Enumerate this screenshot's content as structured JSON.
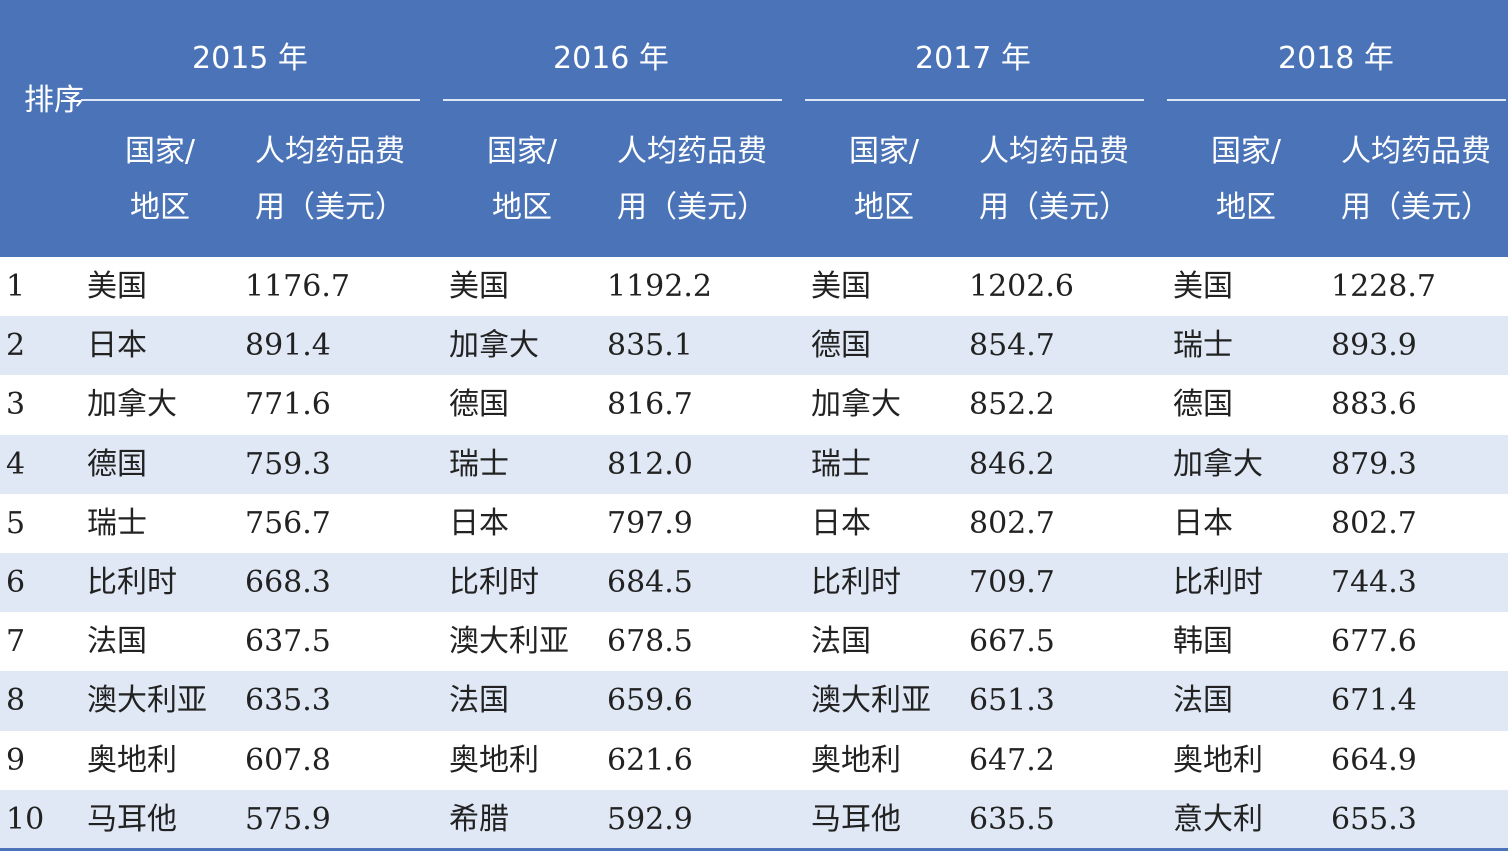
{
  "header": {
    "rank": "排序",
    "years": [
      "2015 年",
      "2016 年",
      "2017 年",
      "2018 年"
    ],
    "country_col": [
      "国家/",
      "地区"
    ],
    "value_col": [
      "人均药品费",
      "用（美元）"
    ]
  },
  "rows": [
    {
      "rank": "1",
      "y2015": {
        "country": "美国",
        "value": "1176.7"
      },
      "y2016": {
        "country": "美国",
        "value": "1192.2"
      },
      "y2017": {
        "country": "美国",
        "value": "1202.6"
      },
      "y2018": {
        "country": "美国",
        "value": "1228.7"
      }
    },
    {
      "rank": "2",
      "y2015": {
        "country": "日本",
        "value": "891.4"
      },
      "y2016": {
        "country": "加拿大",
        "value": "835.1"
      },
      "y2017": {
        "country": "德国",
        "value": "854.7"
      },
      "y2018": {
        "country": "瑞士",
        "value": "893.9"
      }
    },
    {
      "rank": "3",
      "y2015": {
        "country": "加拿大",
        "value": "771.6"
      },
      "y2016": {
        "country": "德国",
        "value": "816.7"
      },
      "y2017": {
        "country": "加拿大",
        "value": "852.2"
      },
      "y2018": {
        "country": "德国",
        "value": "883.6"
      }
    },
    {
      "rank": "4",
      "y2015": {
        "country": "德国",
        "value": "759.3"
      },
      "y2016": {
        "country": "瑞士",
        "value": "812.0"
      },
      "y2017": {
        "country": "瑞士",
        "value": "846.2"
      },
      "y2018": {
        "country": "加拿大",
        "value": "879.3"
      }
    },
    {
      "rank": "5",
      "y2015": {
        "country": "瑞士",
        "value": "756.7"
      },
      "y2016": {
        "country": "日本",
        "value": "797.9"
      },
      "y2017": {
        "country": "日本",
        "value": "802.7"
      },
      "y2018": {
        "country": "日本",
        "value": "802.7"
      }
    },
    {
      "rank": "6",
      "y2015": {
        "country": "比利时",
        "value": "668.3"
      },
      "y2016": {
        "country": "比利时",
        "value": "684.5"
      },
      "y2017": {
        "country": "比利时",
        "value": "709.7"
      },
      "y2018": {
        "country": "比利时",
        "value": "744.3"
      }
    },
    {
      "rank": "7",
      "y2015": {
        "country": "法国",
        "value": "637.5"
      },
      "y2016": {
        "country": "澳大利亚",
        "value": "678.5"
      },
      "y2017": {
        "country": "法国",
        "value": "667.5"
      },
      "y2018": {
        "country": "韩国",
        "value": "677.6"
      }
    },
    {
      "rank": "8",
      "y2015": {
        "country": "澳大利亚",
        "value": "635.3"
      },
      "y2016": {
        "country": "法国",
        "value": "659.6"
      },
      "y2017": {
        "country": "澳大利亚",
        "value": "651.3"
      },
      "y2018": {
        "country": "法国",
        "value": "671.4"
      }
    },
    {
      "rank": "9",
      "y2015": {
        "country": "奥地利",
        "value": "607.8"
      },
      "y2016": {
        "country": "奥地利",
        "value": "621.6"
      },
      "y2017": {
        "country": "奥地利",
        "value": "647.2"
      },
      "y2018": {
        "country": "奥地利",
        "value": "664.9"
      }
    },
    {
      "rank": "10",
      "y2015": {
        "country": "马耳他",
        "value": "575.9"
      },
      "y2016": {
        "country": "希腊",
        "value": "592.9"
      },
      "y2017": {
        "country": "马耳他",
        "value": "635.5"
      },
      "y2018": {
        "country": "意大利",
        "value": "655.3"
      }
    }
  ],
  "colors": {
    "header_bg": "#4a73b8",
    "stripe": "#dfe8f4",
    "text": "#222222"
  }
}
